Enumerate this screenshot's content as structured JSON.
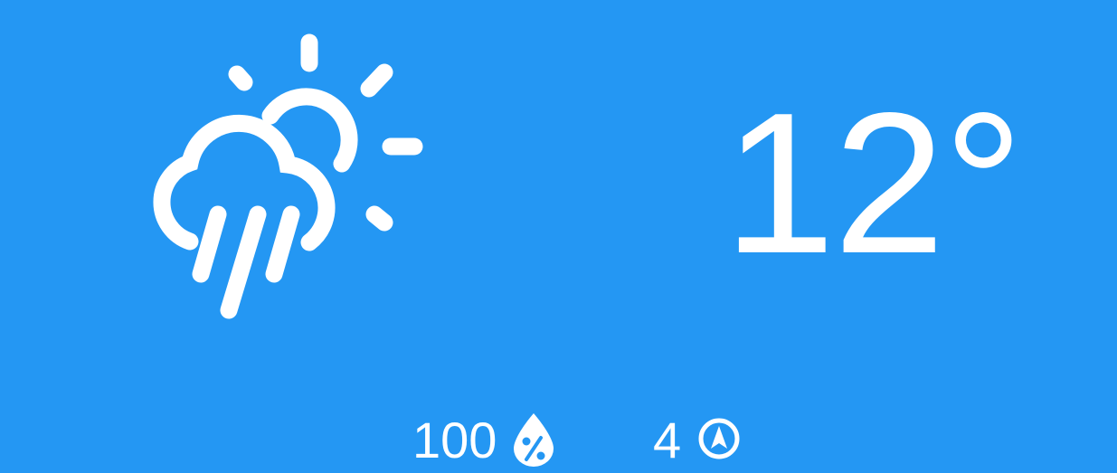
{
  "widget": {
    "background_color": "#2497f3",
    "foreground_color": "#ffffff",
    "condition_icon": "partly-sunny-rain-icon",
    "temperature": "12°"
  },
  "stats": {
    "humidity": {
      "value": "100",
      "icon": "humidity-drop-percent-icon"
    },
    "wind": {
      "value": "4",
      "icon": "wind-direction-arrow-icon"
    }
  }
}
